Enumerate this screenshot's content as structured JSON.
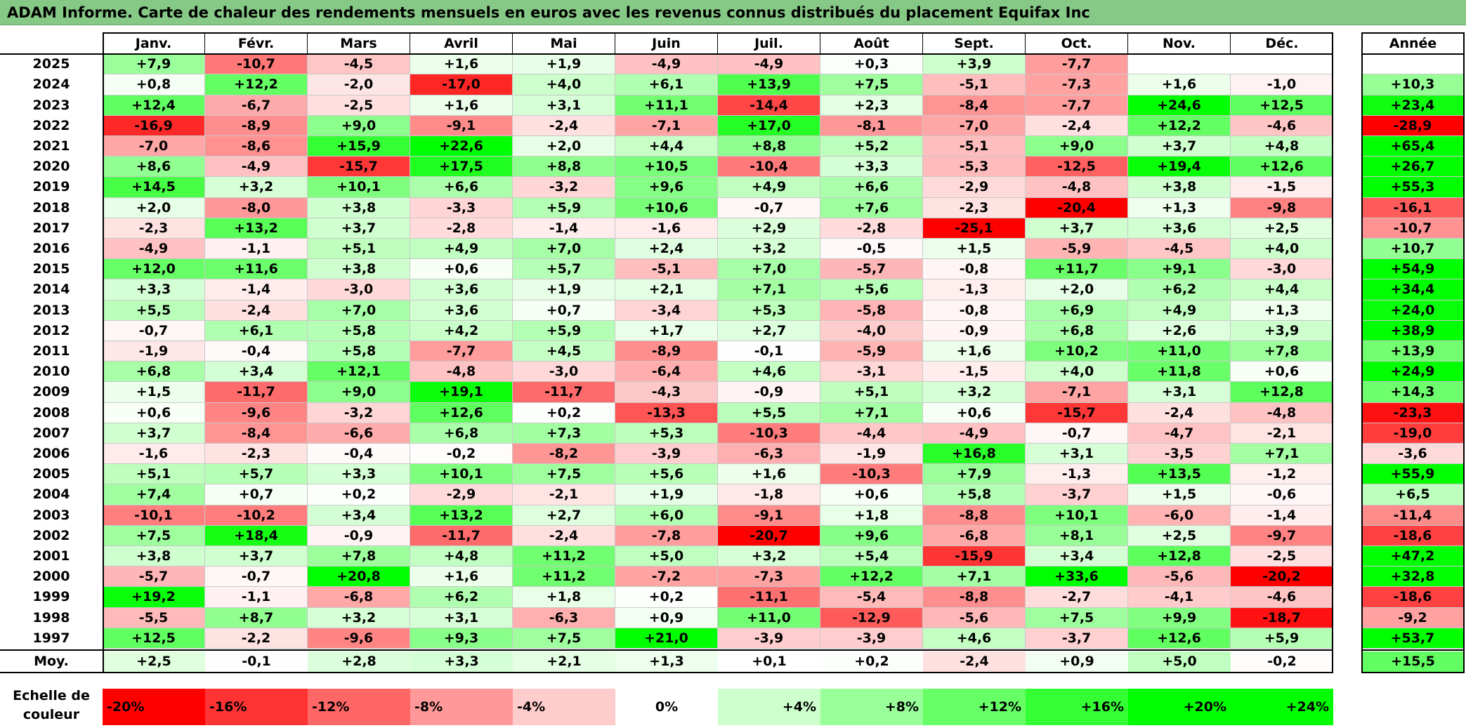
{
  "title": "ADAM Informe. Carte de chaleur des rendements mensuels en euros avec les revenus connus distribués du placement Equifax Inc",
  "chart_data": {
    "type": "heatmap",
    "title": "ADAM Informe. Carte de chaleur des rendements mensuels en euros avec les revenus connus distribués du placement Equifax Inc",
    "columns": [
      "Janv.",
      "Févr.",
      "Mars",
      "Avril",
      "Mai",
      "Juin",
      "Juil.",
      "Août",
      "Sept.",
      "Oct.",
      "Nov.",
      "Déc."
    ],
    "year_column_label": "Année",
    "average_label": "Moy.",
    "rows": [
      {
        "year": "2025",
        "values": [
          "+7,9",
          "-10,7",
          "-4,5",
          "+1,6",
          "+1,9",
          "-4,9",
          "-4,9",
          "+0,3",
          "+3,9",
          "-7,7",
          "",
          ""
        ],
        "annual": ""
      },
      {
        "year": "2024",
        "values": [
          "+0,8",
          "+12,2",
          "-2,0",
          "-17,0",
          "+4,0",
          "+6,1",
          "+13,9",
          "+7,5",
          "-5,1",
          "-7,3",
          "+1,6",
          "-1,0"
        ],
        "annual": "+10,3"
      },
      {
        "year": "2023",
        "values": [
          "+12,4",
          "-6,7",
          "-2,5",
          "+1,6",
          "+3,1",
          "+11,1",
          "-14,4",
          "+2,3",
          "-8,4",
          "-7,7",
          "+24,6",
          "+12,5"
        ],
        "annual": "+23,4"
      },
      {
        "year": "2022",
        "values": [
          "-16,9",
          "-8,9",
          "+9,0",
          "-9,1",
          "-2,4",
          "-7,1",
          "+17,0",
          "-8,1",
          "-7,0",
          "-2,4",
          "+12,2",
          "-4,6"
        ],
        "annual": "-28,9"
      },
      {
        "year": "2021",
        "values": [
          "-7,0",
          "-8,6",
          "+15,9",
          "+22,6",
          "+2,0",
          "+4,4",
          "+8,8",
          "+5,2",
          "-5,1",
          "+9,0",
          "+3,7",
          "+4,8"
        ],
        "annual": "+65,4"
      },
      {
        "year": "2020",
        "values": [
          "+8,6",
          "-4,9",
          "-15,7",
          "+17,5",
          "+8,8",
          "+10,5",
          "-10,4",
          "+3,3",
          "-5,3",
          "-12,5",
          "+19,4",
          "+12,6"
        ],
        "annual": "+26,7"
      },
      {
        "year": "2019",
        "values": [
          "+14,5",
          "+3,2",
          "+10,1",
          "+6,6",
          "-3,2",
          "+9,6",
          "+4,9",
          "+6,6",
          "-2,9",
          "-4,8",
          "+3,8",
          "-1,5"
        ],
        "annual": "+55,3"
      },
      {
        "year": "2018",
        "values": [
          "+2,0",
          "-8,0",
          "+3,8",
          "-3,3",
          "+5,9",
          "+10,6",
          "-0,7",
          "+7,6",
          "-2,3",
          "-20,4",
          "+1,3",
          "-9,8"
        ],
        "annual": "-16,1"
      },
      {
        "year": "2017",
        "values": [
          "-2,3",
          "+13,2",
          "+3,7",
          "-2,8",
          "-1,4",
          "-1,6",
          "+2,9",
          "-2,8",
          "-25,1",
          "+3,7",
          "+3,6",
          "+2,5"
        ],
        "annual": "-10,7"
      },
      {
        "year": "2016",
        "values": [
          "-4,9",
          "-1,1",
          "+5,1",
          "+4,9",
          "+7,0",
          "+2,4",
          "+3,2",
          "-0,5",
          "+1,5",
          "-5,9",
          "-4,5",
          "+4,0"
        ],
        "annual": "+10,7"
      },
      {
        "year": "2015",
        "values": [
          "+12,0",
          "+11,6",
          "+3,8",
          "+0,6",
          "+5,7",
          "-5,1",
          "+7,0",
          "-5,7",
          "-0,8",
          "+11,7",
          "+9,1",
          "-3,0"
        ],
        "annual": "+54,9"
      },
      {
        "year": "2014",
        "values": [
          "+3,3",
          "-1,4",
          "-3,0",
          "+3,6",
          "+1,9",
          "+2,1",
          "+7,1",
          "+5,6",
          "-1,3",
          "+2,0",
          "+6,2",
          "+4,4"
        ],
        "annual": "+34,4"
      },
      {
        "year": "2013",
        "values": [
          "+5,5",
          "-2,4",
          "+7,0",
          "+3,6",
          "+0,7",
          "-3,4",
          "+5,3",
          "-5,8",
          "-0,8",
          "+6,9",
          "+4,9",
          "+1,3"
        ],
        "annual": "+24,0"
      },
      {
        "year": "2012",
        "values": [
          "-0,7",
          "+6,1",
          "+5,8",
          "+4,2",
          "+5,9",
          "+1,7",
          "+2,7",
          "-4,0",
          "-0,9",
          "+6,8",
          "+2,6",
          "+3,9"
        ],
        "annual": "+38,9"
      },
      {
        "year": "2011",
        "values": [
          "-1,9",
          "-0,4",
          "+5,8",
          "-7,7",
          "+4,5",
          "-8,9",
          "-0,1",
          "-5,9",
          "+1,6",
          "+10,2",
          "+11,0",
          "+7,8"
        ],
        "annual": "+13,9"
      },
      {
        "year": "2010",
        "values": [
          "+6,8",
          "+3,4",
          "+12,1",
          "-4,8",
          "-3,0",
          "-6,4",
          "+4,6",
          "-3,1",
          "-1,5",
          "+4,0",
          "+11,8",
          "+0,6"
        ],
        "annual": "+24,9"
      },
      {
        "year": "2009",
        "values": [
          "+1,5",
          "-11,7",
          "+9,0",
          "+19,1",
          "-11,7",
          "-4,3",
          "-0,9",
          "+5,1",
          "+3,2",
          "-7,1",
          "+3,1",
          "+12,8"
        ],
        "annual": "+14,3"
      },
      {
        "year": "2008",
        "values": [
          "+0,6",
          "-9,6",
          "-3,2",
          "+12,6",
          "+0,2",
          "-13,3",
          "+5,5",
          "+7,1",
          "+0,6",
          "-15,7",
          "-2,4",
          "-4,8"
        ],
        "annual": "-23,3"
      },
      {
        "year": "2007",
        "values": [
          "+3,7",
          "-8,4",
          "-6,6",
          "+6,8",
          "+7,3",
          "+5,3",
          "-10,3",
          "-4,4",
          "-4,9",
          "-0,7",
          "-4,7",
          "-2,1"
        ],
        "annual": "-19,0"
      },
      {
        "year": "2006",
        "values": [
          "-1,6",
          "-2,3",
          "-0,4",
          "-0,2",
          "-8,2",
          "-3,9",
          "-6,3",
          "-1,9",
          "+16,8",
          "+3,1",
          "-3,5",
          "+7,1"
        ],
        "annual": "-3,6"
      },
      {
        "year": "2005",
        "values": [
          "+5,1",
          "+5,7",
          "+3,3",
          "+10,1",
          "+7,5",
          "+5,6",
          "+1,6",
          "-10,3",
          "+7,9",
          "-1,3",
          "+13,5",
          "-1,2"
        ],
        "annual": "+55,9"
      },
      {
        "year": "2004",
        "values": [
          "+7,4",
          "+0,7",
          "+0,2",
          "-2,9",
          "-2,1",
          "+1,9",
          "-1,8",
          "+0,6",
          "+5,8",
          "-3,7",
          "+1,5",
          "-0,6"
        ],
        "annual": "+6,5"
      },
      {
        "year": "2003",
        "values": [
          "-10,1",
          "-10,2",
          "+3,4",
          "+13,2",
          "+2,7",
          "+6,0",
          "-9,1",
          "+1,8",
          "-8,8",
          "+10,1",
          "-6,0",
          "-1,4"
        ],
        "annual": "-11,4"
      },
      {
        "year": "2002",
        "values": [
          "+7,5",
          "+18,4",
          "-0,9",
          "-11,7",
          "-2,4",
          "-7,8",
          "-20,7",
          "+9,6",
          "-6,8",
          "+8,1",
          "+2,5",
          "-9,7"
        ],
        "annual": "-18,6"
      },
      {
        "year": "2001",
        "values": [
          "+3,8",
          "+3,7",
          "+7,8",
          "+4,8",
          "+11,2",
          "+5,0",
          "+3,2",
          "+5,4",
          "-15,9",
          "+3,4",
          "+12,8",
          "-2,5"
        ],
        "annual": "+47,2"
      },
      {
        "year": "2000",
        "values": [
          "-5,7",
          "-0,7",
          "+20,8",
          "+1,6",
          "+11,2",
          "-7,2",
          "-7,3",
          "+12,2",
          "+7,1",
          "+33,6",
          "-5,6",
          "-20,2"
        ],
        "annual": "+32,8"
      },
      {
        "year": "1999",
        "values": [
          "+19,2",
          "-1,1",
          "-6,8",
          "+6,2",
          "+1,8",
          "+0,2",
          "-11,1",
          "-5,4",
          "-8,8",
          "-2,7",
          "-4,1",
          "-4,6"
        ],
        "annual": "-18,6"
      },
      {
        "year": "1998",
        "values": [
          "-5,5",
          "+8,7",
          "+3,2",
          "+3,1",
          "-6,3",
          "+0,9",
          "+11,0",
          "-12,9",
          "-5,6",
          "+7,5",
          "+9,9",
          "-18,7"
        ],
        "annual": "-9,2"
      },
      {
        "year": "1997",
        "values": [
          "+12,5",
          "-2,2",
          "-9,6",
          "+9,3",
          "+7,5",
          "+21,0",
          "-3,9",
          "-3,9",
          "+4,6",
          "-3,7",
          "+12,6",
          "+5,9"
        ],
        "annual": "+53,7"
      }
    ],
    "averages": [
      "+2,5",
      "-0,1",
      "+2,8",
      "+3,3",
      "+2,1",
      "+1,3",
      "+0,1",
      "+0,2",
      "-2,4",
      "+0,9",
      "+5,0",
      "-0,2"
    ],
    "average_annual": "+15,5",
    "color_scale": {
      "label": "Echelle de couleur",
      "steps": [
        "-20%",
        "-16%",
        "-12%",
        "-8%",
        "-4%",
        "0%",
        "+4%",
        "+8%",
        "+12%",
        "+16%",
        "+20%",
        "+24%"
      ],
      "negative_color": "#ff0000",
      "positive_color": "#00ff00",
      "neutral_color": "#ffffff"
    }
  }
}
